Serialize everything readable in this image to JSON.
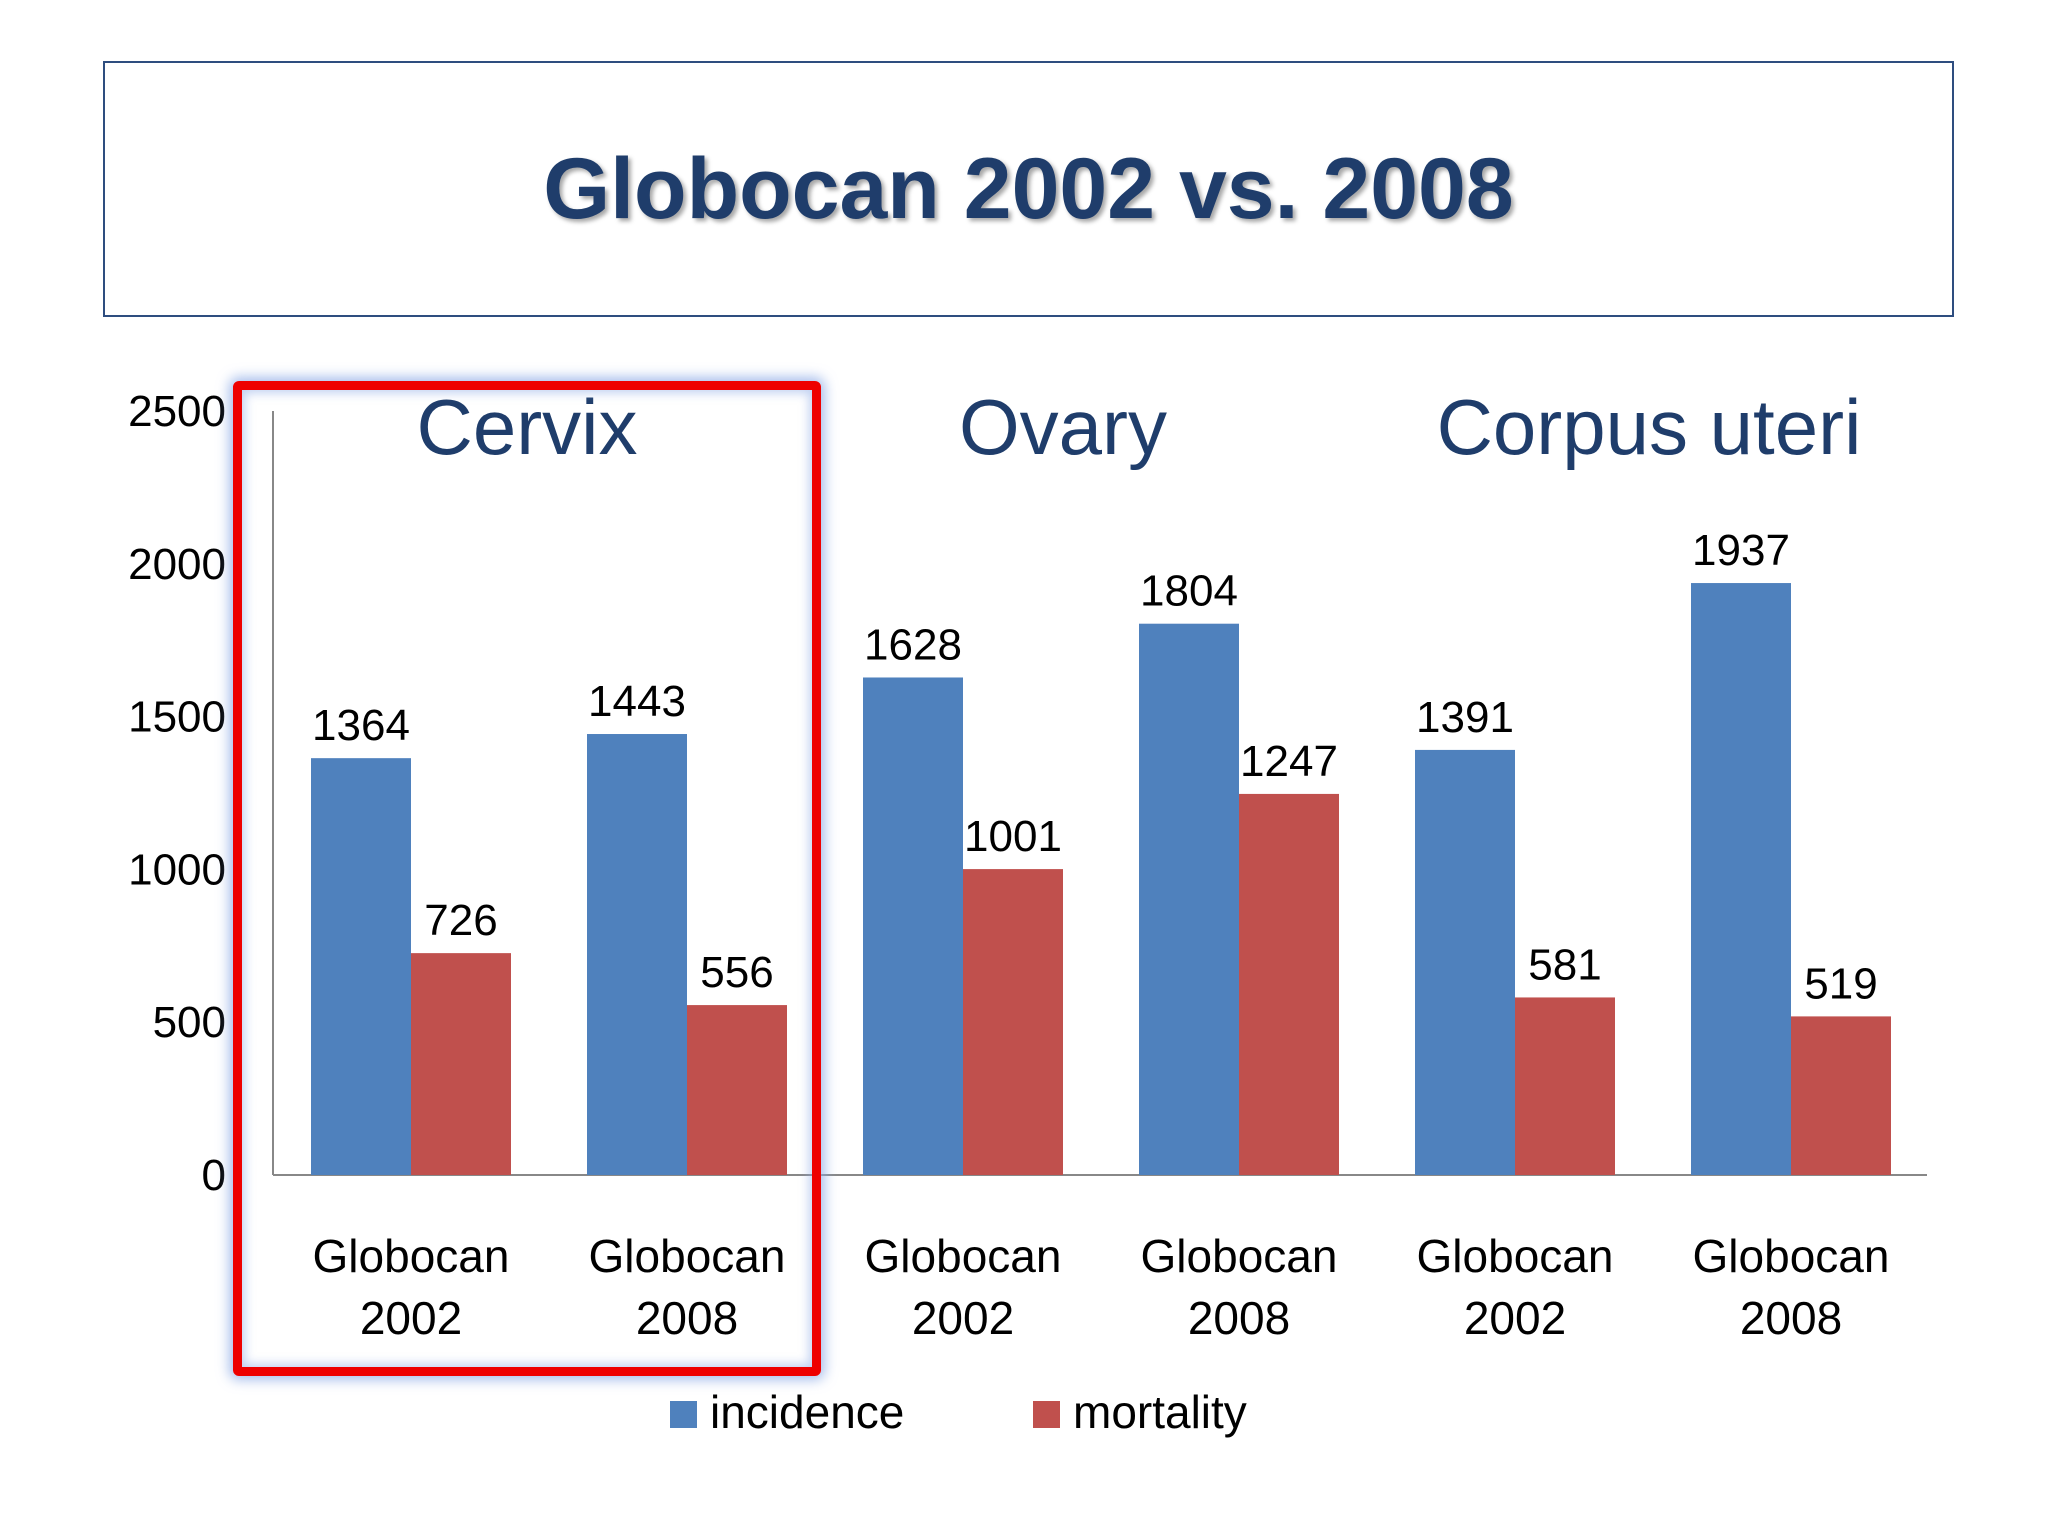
{
  "slide": {
    "title": "Globocan 2002 vs. 2008"
  },
  "highlight": {
    "group": "Cervix",
    "color": "#ee0000"
  },
  "chart_data": {
    "type": "bar",
    "groups": [
      "Cervix",
      "Ovary",
      "Corpus uteri"
    ],
    "categories": [
      [
        "Globocan",
        "2002"
      ],
      [
        "Globocan",
        "2008"
      ],
      [
        "Globocan",
        "2002"
      ],
      [
        "Globocan",
        "2008"
      ],
      [
        "Globocan",
        "2002"
      ],
      [
        "Globocan",
        "2008"
      ]
    ],
    "series": [
      {
        "name": "incidence",
        "color": "#4f81bd",
        "values": [
          1364,
          1443,
          1628,
          1804,
          1391,
          1937
        ]
      },
      {
        "name": "mortality",
        "color": "#c0504d",
        "values": [
          726,
          556,
          1001,
          1247,
          581,
          519
        ]
      }
    ],
    "ylim": [
      0,
      2500
    ],
    "yticks": [
      0,
      500,
      1000,
      1500,
      2000,
      2500
    ],
    "grid": false,
    "legend_position": "bottom",
    "title": "",
    "xlabel": "",
    "ylabel": ""
  }
}
